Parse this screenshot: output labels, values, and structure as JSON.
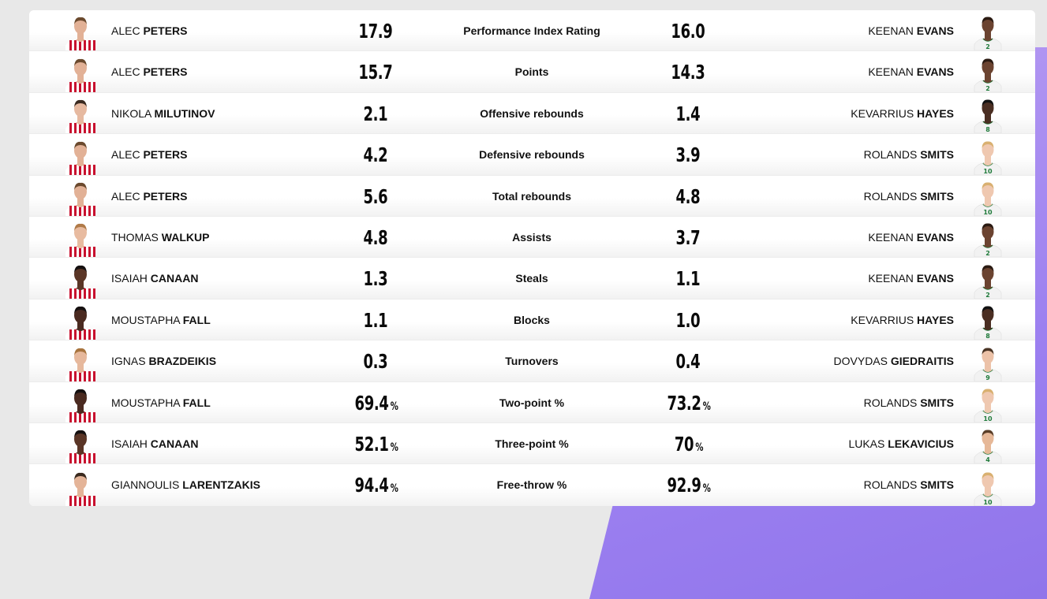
{
  "colors": {
    "home_jersey": "#c8102e",
    "away_jersey": "#f2f2f2",
    "away_trim": "#1f7a3a",
    "accent": "#9b7ff0"
  },
  "rows": [
    {
      "label": "Performance Index Rating",
      "home": {
        "first": "ALEC",
        "last": "PETERS",
        "value": "17.9",
        "unit": "",
        "skin": "#e2b196",
        "hair": "#6b4a2e"
      },
      "away": {
        "first": "KEENAN",
        "last": "EVANS",
        "value": "16.0",
        "unit": "",
        "skin": "#6b4330",
        "hair": "#2a1a12",
        "number": "2"
      }
    },
    {
      "label": "Points",
      "home": {
        "first": "ALEC",
        "last": "PETERS",
        "value": "15.7",
        "unit": "",
        "skin": "#e2b196",
        "hair": "#6b4a2e"
      },
      "away": {
        "first": "KEENAN",
        "last": "EVANS",
        "value": "14.3",
        "unit": "",
        "skin": "#6b4330",
        "hair": "#2a1a12",
        "number": "2"
      }
    },
    {
      "label": "Offensive rebounds",
      "home": {
        "first": "NIKOLA",
        "last": "MILUTINOV",
        "value": "2.1",
        "unit": "",
        "skin": "#e6b9a0",
        "hair": "#3a2a20"
      },
      "away": {
        "first": "KEVARRIUS",
        "last": "HAYES",
        "value": "1.4",
        "unit": "",
        "skin": "#4a2e22",
        "hair": "#111111",
        "number": "8"
      }
    },
    {
      "label": "Defensive rebounds",
      "home": {
        "first": "ALEC",
        "last": "PETERS",
        "value": "4.2",
        "unit": "",
        "skin": "#e2b196",
        "hair": "#6b4a2e"
      },
      "away": {
        "first": "ROLANDS",
        "last": "SMITS",
        "value": "3.9",
        "unit": "",
        "skin": "#efc8b0",
        "hair": "#d9b070",
        "number": "10"
      }
    },
    {
      "label": "Total rebounds",
      "home": {
        "first": "ALEC",
        "last": "PETERS",
        "value": "5.6",
        "unit": "",
        "skin": "#e2b196",
        "hair": "#6b4a2e"
      },
      "away": {
        "first": "ROLANDS",
        "last": "SMITS",
        "value": "4.8",
        "unit": "",
        "skin": "#efc8b0",
        "hair": "#d9b070",
        "number": "10"
      }
    },
    {
      "label": "Assists",
      "home": {
        "first": "THOMAS",
        "last": "WALKUP",
        "value": "4.8",
        "unit": "",
        "skin": "#e8bba0",
        "hair": "#b07a48"
      },
      "away": {
        "first": "KEENAN",
        "last": "EVANS",
        "value": "3.7",
        "unit": "",
        "skin": "#6b4330",
        "hair": "#2a1a12",
        "number": "2"
      }
    },
    {
      "label": "Steals",
      "home": {
        "first": "ISAIAH",
        "last": "CANAAN",
        "value": "1.3",
        "unit": "",
        "skin": "#5a3526",
        "hair": "#151010"
      },
      "away": {
        "first": "KEENAN",
        "last": "EVANS",
        "value": "1.1",
        "unit": "",
        "skin": "#6b4330",
        "hair": "#2a1a12",
        "number": "2"
      }
    },
    {
      "label": "Blocks",
      "home": {
        "first": "MOUSTAPHA",
        "last": "FALL",
        "value": "1.1",
        "unit": "",
        "skin": "#4a2a20",
        "hair": "#151010"
      },
      "away": {
        "first": "KEVARRIUS",
        "last": "HAYES",
        "value": "1.0",
        "unit": "",
        "skin": "#4a2e22",
        "hair": "#111111",
        "number": "8"
      }
    },
    {
      "label": "Turnovers",
      "home": {
        "first": "IGNAS",
        "last": "BRAZDEIKIS",
        "value": "0.3",
        "unit": "",
        "skin": "#e6b89c",
        "hair": "#a8743e"
      },
      "away": {
        "first": "DOVYDAS",
        "last": "GIEDRAITIS",
        "value": "0.4",
        "unit": "",
        "skin": "#ecc2a8",
        "hair": "#4a3424",
        "number": "9"
      }
    },
    {
      "label": "Two-point %",
      "home": {
        "first": "MOUSTAPHA",
        "last": "FALL",
        "value": "69.4",
        "unit": "%",
        "skin": "#4a2a20",
        "hair": "#151010"
      },
      "away": {
        "first": "ROLANDS",
        "last": "SMITS",
        "value": "73.2",
        "unit": "%",
        "skin": "#efc8b0",
        "hair": "#d9b070",
        "number": "10"
      }
    },
    {
      "label": "Three-point %",
      "home": {
        "first": "ISAIAH",
        "last": "CANAAN",
        "value": "52.1",
        "unit": "%",
        "skin": "#5a3526",
        "hair": "#151010"
      },
      "away": {
        "first": "LUKAS",
        "last": "LEKAVICIUS",
        "value": "70",
        "unit": "%",
        "skin": "#e6b898",
        "hair": "#5a3e28",
        "number": "4"
      }
    },
    {
      "label": "Free-throw %",
      "home": {
        "first": "GIANNOULIS",
        "last": "LARENTZAKIS",
        "value": "94.4",
        "unit": "%",
        "skin": "#e4b498",
        "hair": "#3a2a1e"
      },
      "away": {
        "first": "ROLANDS",
        "last": "SMITS",
        "value": "92.9",
        "unit": "%",
        "skin": "#efc8b0",
        "hair": "#d9b070",
        "number": "10"
      }
    }
  ]
}
